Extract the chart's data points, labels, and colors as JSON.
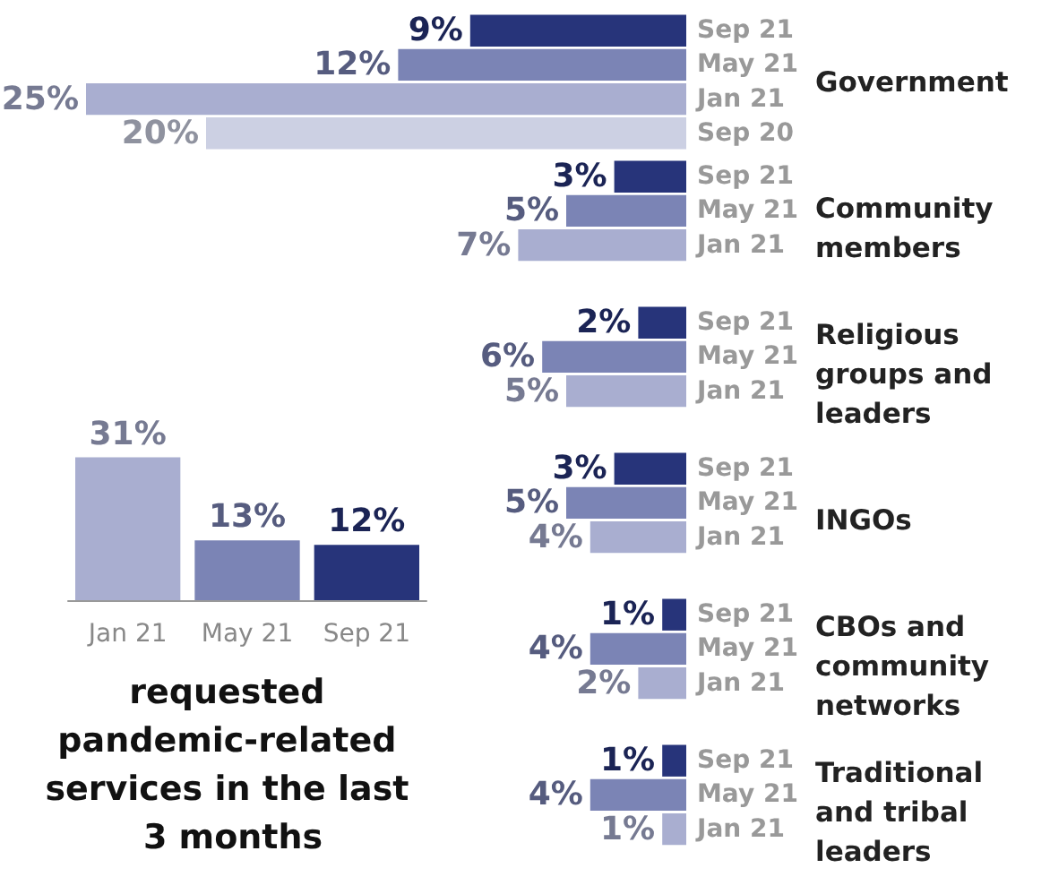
{
  "chart_data": [
    {
      "type": "bar",
      "title": "requested pandemic-related services in the last 3 months",
      "categories": [
        "Jan 21",
        "May 21",
        "Sep 21"
      ],
      "values": [
        31,
        13,
        12
      ],
      "colors": [
        "#a9aed0",
        "#7b84b5",
        "#27347a"
      ],
      "value_labels": [
        "31%",
        "13%",
        "12%"
      ],
      "tick_labels": "x"
    },
    {
      "type": "bar",
      "orientation": "horizontal",
      "categories": [
        "Government",
        "Community members",
        "Religious groups and leaders",
        "INGOs",
        "CBOs and community networks",
        "Traditional and tribal leaders"
      ],
      "tick_labels": "y",
      "series": [
        {
          "name": "Sep 21",
          "color": "#27347a",
          "values": [
            9,
            3,
            2,
            3,
            1,
            1
          ],
          "value_labels": [
            "9%",
            "3%",
            "2%",
            "3%",
            "1%",
            "1%"
          ]
        },
        {
          "name": "May 21",
          "color": "#7b84b5",
          "values": [
            12,
            5,
            6,
            5,
            4,
            4
          ],
          "value_labels": [
            "12%",
            "5%",
            "6%",
            "5%",
            "4%",
            "4%"
          ]
        },
        {
          "name": "Jan 21",
          "color": "#a9aed0",
          "values": [
            25,
            7,
            5,
            4,
            2,
            1
          ],
          "value_labels": [
            "25%",
            "7%",
            "5%",
            "4%",
            "2%",
            "1%"
          ]
        },
        {
          "name": "Sep 20",
          "color": "#ccd0e3",
          "values": [
            20,
            null,
            null,
            null,
            null,
            null
          ],
          "value_labels": [
            "20%",
            null,
            null,
            null,
            null,
            null
          ]
        }
      ]
    }
  ]
}
